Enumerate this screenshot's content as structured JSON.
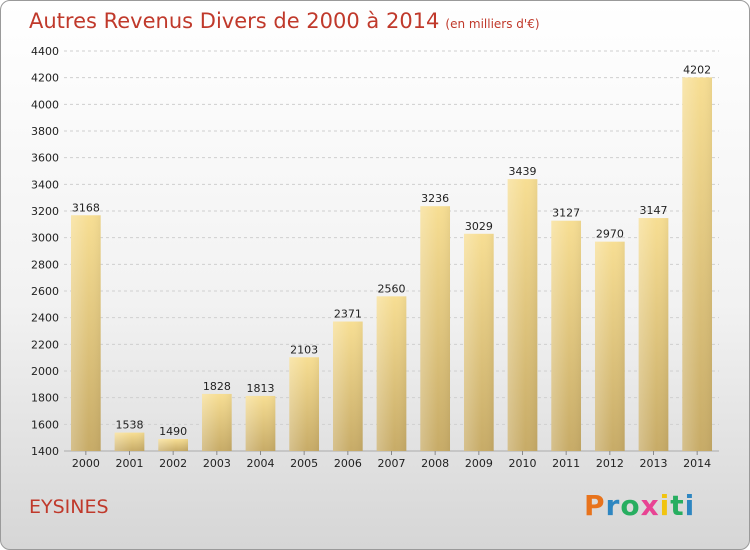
{
  "title": "Autres Revenus Divers de 2000 à 2014",
  "unit": "(en milliers d'€)",
  "commune": "EYSINES",
  "logo": {
    "letters": [
      "P",
      "r",
      "o",
      "x",
      "i",
      "t",
      "i"
    ],
    "colors": [
      "#e8731c",
      "#2e86c1",
      "#27ae60",
      "#e84393",
      "#f1c40f",
      "#27ae60",
      "#2e86c1"
    ]
  },
  "chart_data": {
    "type": "bar",
    "categories": [
      "2000",
      "2001",
      "2002",
      "2003",
      "2004",
      "2005",
      "2006",
      "2007",
      "2008",
      "2009",
      "2010",
      "2011",
      "2012",
      "2013",
      "2014"
    ],
    "values": [
      3168,
      1538,
      1490,
      1828,
      1813,
      2103,
      2371,
      2560,
      3236,
      3029,
      3439,
      3127,
      2970,
      3147,
      4202
    ],
    "ylim": [
      1400,
      4400
    ],
    "yticks": [
      1400,
      1600,
      1800,
      2000,
      2200,
      2400,
      2600,
      2800,
      3000,
      3200,
      3400,
      3600,
      3800,
      4000,
      4200,
      4400
    ],
    "grid": true,
    "bar_color": "#e8c77a"
  }
}
